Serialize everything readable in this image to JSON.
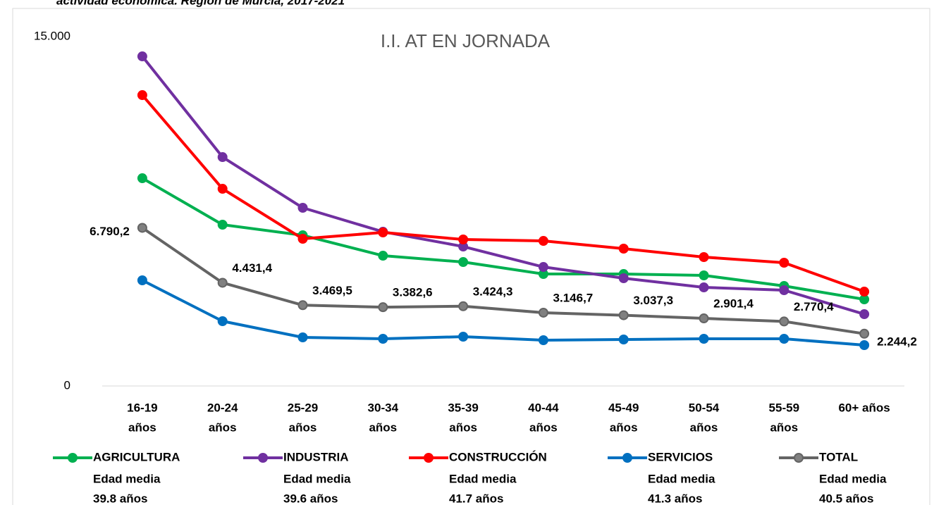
{
  "chart_data": {
    "type": "line",
    "heading": "actividad económica. Región de Murcia, 2017-2021",
    "title": "I.I. AT EN JORNADA",
    "categories": [
      [
        "16-19",
        "años"
      ],
      [
        "20-24",
        "años"
      ],
      [
        "25-29",
        "años"
      ],
      [
        "30-34",
        "años"
      ],
      [
        "35-39",
        "años"
      ],
      [
        "40-44",
        "años"
      ],
      [
        "45-49",
        "años"
      ],
      [
        "50-54",
        "años"
      ],
      [
        "55-59",
        "años"
      ],
      [
        "60+ años"
      ]
    ],
    "ylim": [
      0,
      15000
    ],
    "yticks": [
      0,
      {
        "value": 15000,
        "label": "15.000"
      }
    ],
    "grid": false,
    "legend": "bottom",
    "series": [
      {
        "name": "AGRICULTURA",
        "color": "#00b050",
        "age_label": "Edad media",
        "age": "39.8 años",
        "values": [
          8920,
          6925,
          6471,
          5594,
          5322,
          4808,
          4808,
          4748,
          4294,
          3719
        ]
      },
      {
        "name": "INDUSTRIA",
        "color": "#7030a0",
        "age_label": "Edad media",
        "age": "39.6 años",
        "values": [
          14152,
          9828,
          7651,
          6622,
          5987,
          5110,
          4627,
          4233,
          4113,
          3084
        ]
      },
      {
        "name": "CONSTRUCCIÓN",
        "color": "#ff0000",
        "age_label": "Edad media",
        "age": "41.7 años",
        "values": [
          12489,
          8467,
          6320,
          6592,
          6290,
          6229,
          5897,
          5534,
          5292,
          4052
        ]
      },
      {
        "name": "SERVICIOS",
        "color": "#0070c0",
        "age_label": "Edad media",
        "age": "41.3 años",
        "values": [
          4536,
          2782,
          2087,
          2026,
          2117,
          1966,
          1996,
          2026,
          2026,
          1754
        ]
      },
      {
        "name": "TOTAL",
        "color": "#646464",
        "age_label": "Edad media",
        "age": "40.5 años",
        "values": [
          6790.2,
          4431.4,
          3469.5,
          3382.6,
          3424.3,
          3146.7,
          3037.3,
          2901.4,
          2770.4,
          2244.2
        ],
        "value_labels": [
          "6.790,2",
          "4.431,4",
          "3.469,5",
          "3.382,6",
          "3.424,3",
          "3.146,7",
          "3.037,3",
          "2.901,4",
          "2.770,4",
          "2.244,2"
        ]
      }
    ]
  }
}
